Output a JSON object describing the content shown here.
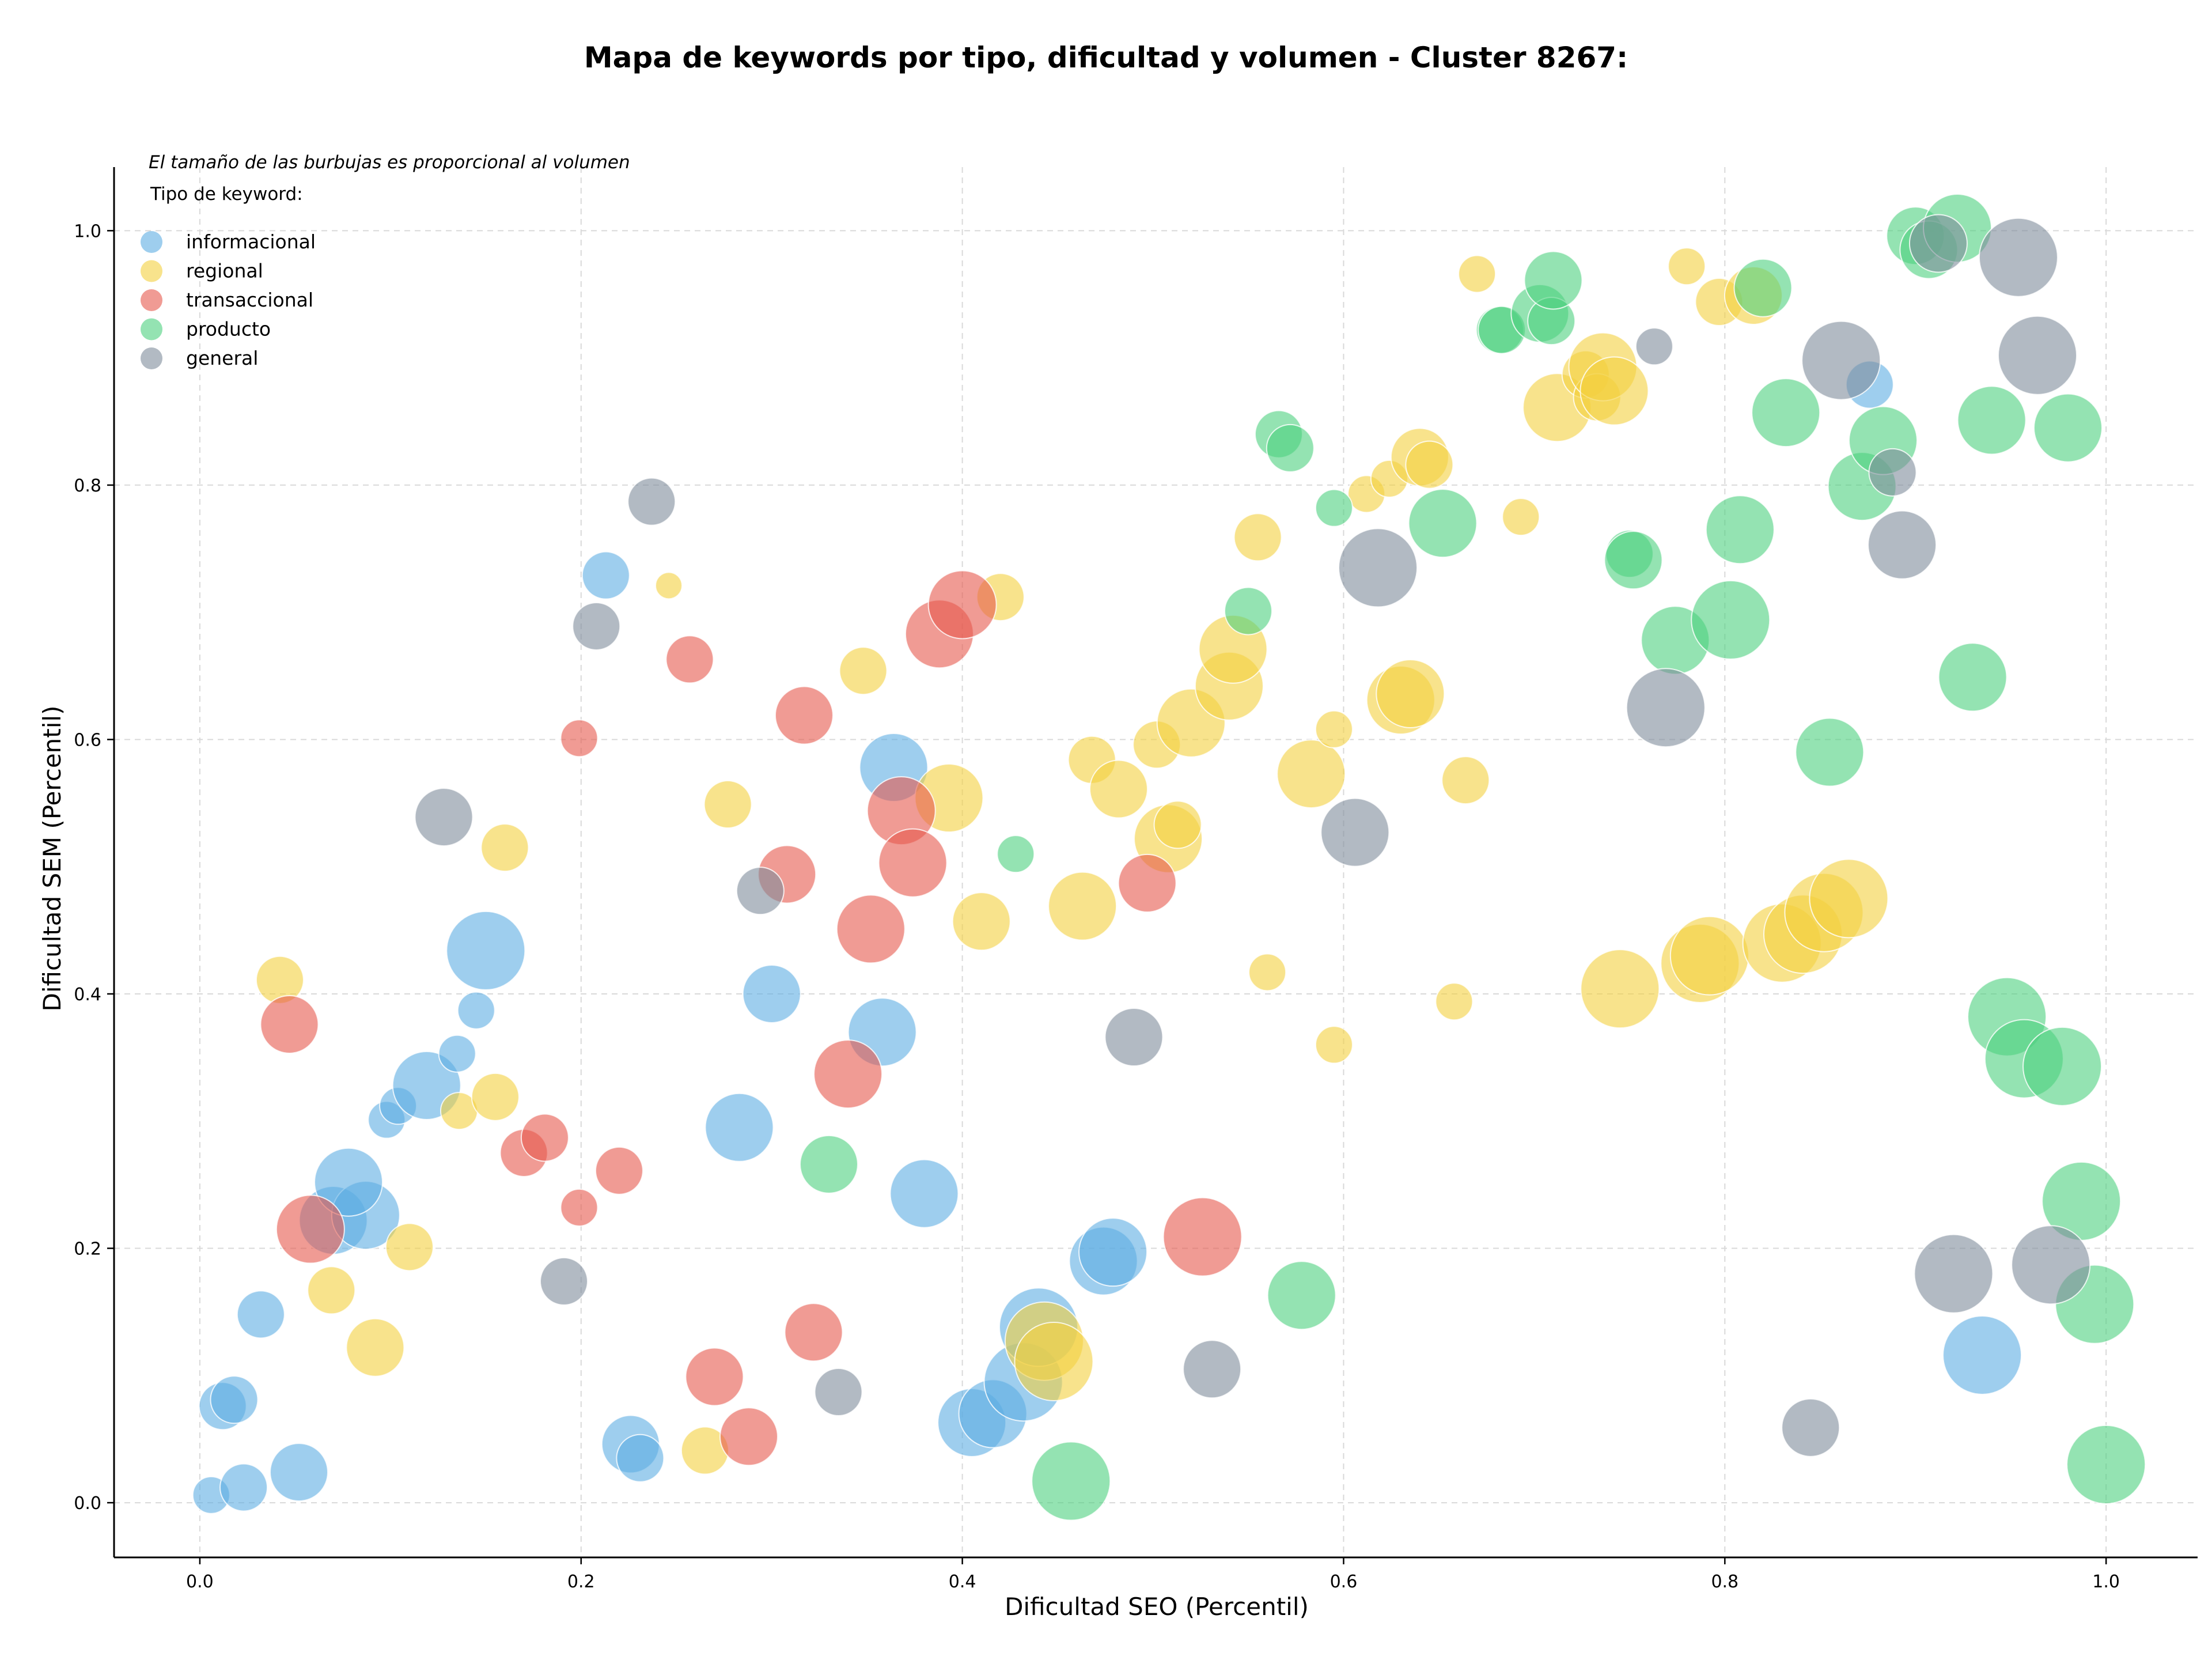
{
  "chart_data": {
    "type": "scatter",
    "title": "Mapa de keywords por tipo, dificultad y volumen - Cluster 8267:",
    "xlabel": "Dificultad SEO (Percentil)",
    "ylabel": "Dificultad SEM (Percentil)",
    "xlim": [
      -0.045,
      1.048
    ],
    "ylim": [
      -0.043,
      1.05
    ],
    "xticks": [
      0.0,
      0.2,
      0.4,
      0.6,
      0.8,
      1.0
    ],
    "yticks": [
      0.0,
      0.2,
      0.4,
      0.6,
      0.8,
      1.0
    ],
    "xtick_labels": [
      "0.0",
      "0.2",
      "0.4",
      "0.6",
      "0.8",
      "1.0"
    ],
    "ytick_labels": [
      "0.0",
      "0.2",
      "0.4",
      "0.6",
      "0.8",
      "1.0"
    ],
    "grid": true,
    "note": "El tamaño de las burbujas es proporcional al volumen",
    "legend_title": "Tipo de keyword:",
    "legend_position": "top-left",
    "series": [
      {
        "name": "informacional",
        "color": "#5dade2",
        "points": [
          [
            0.006,
            0.006,
            2
          ],
          [
            0.023,
            0.012,
            3
          ],
          [
            0.052,
            0.024,
            4
          ],
          [
            0.012,
            0.076,
            3
          ],
          [
            0.018,
            0.081,
            3
          ],
          [
            0.032,
            0.148,
            3
          ],
          [
            0.07,
            0.222,
            5
          ],
          [
            0.087,
            0.226,
            5
          ],
          [
            0.078,
            0.252,
            5
          ],
          [
            0.098,
            0.301,
            2
          ],
          [
            0.104,
            0.312,
            2
          ],
          [
            0.119,
            0.328,
            5
          ],
          [
            0.135,
            0.353,
            2
          ],
          [
            0.145,
            0.387,
            2
          ],
          [
            0.15,
            0.434,
            6
          ],
          [
            0.213,
            0.729,
            3
          ],
          [
            0.226,
            0.046,
            4
          ],
          [
            0.231,
            0.035,
            3
          ],
          [
            0.283,
            0.295,
            5
          ],
          [
            0.3,
            0.4,
            4
          ],
          [
            0.358,
            0.37,
            5
          ],
          [
            0.364,
            0.578,
            5
          ],
          [
            0.38,
            0.243,
            5
          ],
          [
            0.405,
            0.063,
            5
          ],
          [
            0.416,
            0.07,
            5
          ],
          [
            0.432,
            0.095,
            6
          ],
          [
            0.44,
            0.138,
            6
          ],
          [
            0.474,
            0.19,
            5
          ],
          [
            0.479,
            0.197,
            5
          ],
          [
            0.876,
            0.879,
            3
          ],
          [
            0.935,
            0.116,
            6
          ]
        ]
      },
      {
        "name": "regional",
        "color": "#f4d03f",
        "points": [
          [
            0.042,
            0.411,
            3
          ],
          [
            0.069,
            0.167,
            3
          ],
          [
            0.092,
            0.122,
            4
          ],
          [
            0.11,
            0.201,
            3
          ],
          [
            0.136,
            0.308,
            2
          ],
          [
            0.16,
            0.515,
            3
          ],
          [
            0.155,
            0.319,
            3
          ],
          [
            0.246,
            0.721,
            1
          ],
          [
            0.265,
            0.041,
            3
          ],
          [
            0.277,
            0.549,
            3
          ],
          [
            0.348,
            0.654,
            3
          ],
          [
            0.393,
            0.554,
            5
          ],
          [
            0.41,
            0.457,
            4
          ],
          [
            0.42,
            0.712,
            3
          ],
          [
            0.443,
            0.127,
            6
          ],
          [
            0.448,
            0.111,
            6
          ],
          [
            0.463,
            0.469,
            5
          ],
          [
            0.468,
            0.584,
            3
          ],
          [
            0.482,
            0.561,
            4
          ],
          [
            0.502,
            0.596,
            3
          ],
          [
            0.508,
            0.522,
            5
          ],
          [
            0.513,
            0.533,
            3
          ],
          [
            0.52,
            0.613,
            5
          ],
          [
            0.54,
            0.642,
            5
          ],
          [
            0.542,
            0.671,
            5
          ],
          [
            0.555,
            0.759,
            3
          ],
          [
            0.56,
            0.417,
            2
          ],
          [
            0.583,
            0.573,
            5
          ],
          [
            0.595,
            0.36,
            2
          ],
          [
            0.595,
            0.608,
            2
          ],
          [
            0.612,
            0.793,
            2
          ],
          [
            0.624,
            0.805,
            2
          ],
          [
            0.63,
            0.631,
            5
          ],
          [
            0.635,
            0.636,
            5
          ],
          [
            0.64,
            0.822,
            4
          ],
          [
            0.645,
            0.816,
            3
          ],
          [
            0.658,
            0.394,
            2
          ],
          [
            0.664,
            0.568,
            3
          ],
          [
            0.67,
            0.966,
            2
          ],
          [
            0.693,
            0.775,
            2
          ],
          [
            0.712,
            0.861,
            5
          ],
          [
            0.727,
            0.887,
            3
          ],
          [
            0.733,
            0.869,
            3
          ],
          [
            0.736,
            0.893,
            5
          ],
          [
            0.742,
            0.874,
            5
          ],
          [
            0.745,
            0.404,
            6
          ],
          [
            0.78,
            0.972,
            2
          ],
          [
            0.787,
            0.424,
            6
          ],
          [
            0.792,
            0.43,
            6
          ],
          [
            0.797,
            0.944,
            3
          ],
          [
            0.815,
            0.949,
            4
          ],
          [
            0.83,
            0.44,
            6
          ],
          [
            0.841,
            0.447,
            6
          ],
          [
            0.852,
            0.464,
            6
          ],
          [
            0.865,
            0.475,
            6
          ]
        ]
      },
      {
        "name": "transaccional",
        "color": "#e6594c",
        "points": [
          [
            0.047,
            0.376,
            4
          ],
          [
            0.058,
            0.215,
            5
          ],
          [
            0.17,
            0.275,
            3
          ],
          [
            0.181,
            0.287,
            3
          ],
          [
            0.199,
            0.232,
            2
          ],
          [
            0.199,
            0.601,
            2
          ],
          [
            0.22,
            0.261,
            3
          ],
          [
            0.257,
            0.663,
            3
          ],
          [
            0.27,
            0.099,
            4
          ],
          [
            0.288,
            0.052,
            4
          ],
          [
            0.308,
            0.494,
            4
          ],
          [
            0.317,
            0.619,
            4
          ],
          [
            0.322,
            0.134,
            4
          ],
          [
            0.34,
            0.337,
            5
          ],
          [
            0.352,
            0.451,
            5
          ],
          [
            0.368,
            0.544,
            5
          ],
          [
            0.374,
            0.503,
            5
          ],
          [
            0.388,
            0.683,
            5
          ],
          [
            0.4,
            0.706,
            5
          ],
          [
            0.497,
            0.487,
            4
          ],
          [
            0.526,
            0.209,
            6
          ]
        ]
      },
      {
        "name": "producto",
        "color": "#4cd17e",
        "points": [
          [
            0.33,
            0.266,
            4
          ],
          [
            0.428,
            0.51,
            2
          ],
          [
            0.457,
            0.017,
            6
          ],
          [
            0.55,
            0.701,
            3
          ],
          [
            0.566,
            0.84,
            3
          ],
          [
            0.572,
            0.829,
            3
          ],
          [
            0.578,
            0.163,
            5
          ],
          [
            0.595,
            0.782,
            2
          ],
          [
            0.652,
            0.77,
            5
          ],
          [
            0.682,
            0.922,
            3
          ],
          [
            0.683,
            0.922,
            3
          ],
          [
            0.703,
            0.935,
            4
          ],
          [
            0.709,
            0.929,
            3
          ],
          [
            0.71,
            0.961,
            4
          ],
          [
            0.75,
            0.746,
            3
          ],
          [
            0.752,
            0.741,
            4
          ],
          [
            0.774,
            0.678,
            5
          ],
          [
            0.808,
            0.765,
            5
          ],
          [
            0.803,
            0.694,
            6
          ],
          [
            0.82,
            0.955,
            4
          ],
          [
            0.832,
            0.857,
            5
          ],
          [
            0.855,
            0.59,
            5
          ],
          [
            0.872,
            0.799,
            5
          ],
          [
            0.883,
            0.835,
            5
          ],
          [
            0.9,
            0.996,
            4
          ],
          [
            0.907,
            0.985,
            4
          ],
          [
            0.922,
            1.002,
            5
          ],
          [
            0.93,
            0.649,
            5
          ],
          [
            0.94,
            0.851,
            5
          ],
          [
            0.98,
            0.845,
            5
          ],
          [
            0.948,
            0.382,
            6
          ],
          [
            0.957,
            0.349,
            6
          ],
          [
            0.977,
            0.343,
            6
          ],
          [
            0.987,
            0.237,
            6
          ],
          [
            0.994,
            0.156,
            6
          ],
          [
            1.0,
            0.03,
            6
          ]
        ]
      },
      {
        "name": "general",
        "color": "#7f8c9b",
        "points": [
          [
            0.128,
            0.539,
            4
          ],
          [
            0.191,
            0.174,
            3
          ],
          [
            0.208,
            0.689,
            3
          ],
          [
            0.237,
            0.787,
            3
          ],
          [
            0.294,
            0.481,
            3
          ],
          [
            0.335,
            0.087,
            3
          ],
          [
            0.49,
            0.366,
            4
          ],
          [
            0.531,
            0.105,
            4
          ],
          [
            0.606,
            0.527,
            5
          ],
          [
            0.618,
            0.735,
            6
          ],
          [
            0.763,
            0.909,
            2
          ],
          [
            0.769,
            0.625,
            6
          ],
          [
            0.845,
            0.059,
            4
          ],
          [
            0.861,
            0.898,
            6
          ],
          [
            0.888,
            0.81,
            3
          ],
          [
            0.893,
            0.753,
            5
          ],
          [
            0.912,
            0.99,
            4
          ],
          [
            0.92,
            0.18,
            6
          ],
          [
            0.954,
            0.979,
            6
          ],
          [
            0.964,
            0.902,
            6
          ],
          [
            0.971,
            0.187,
            6
          ]
        ]
      }
    ]
  }
}
